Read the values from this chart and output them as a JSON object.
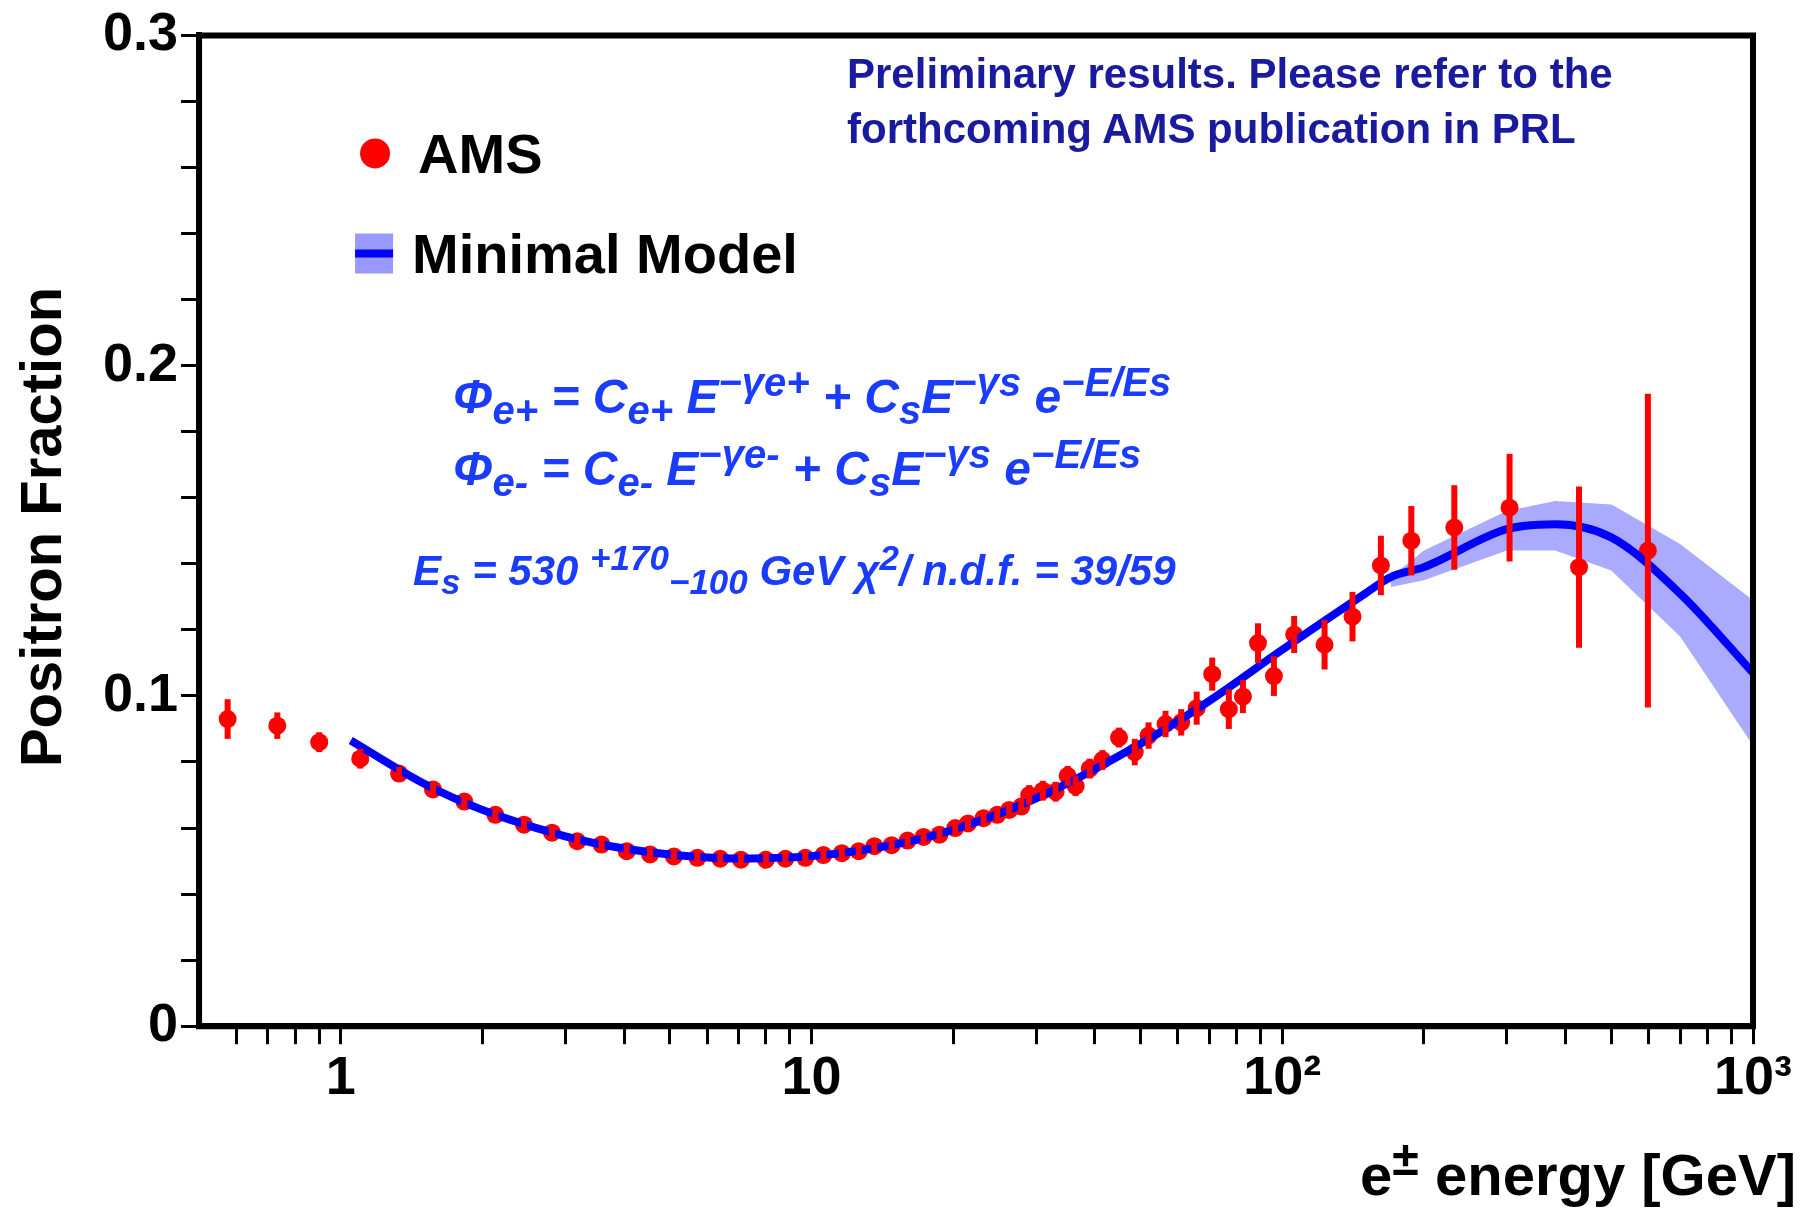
{
  "chart_data": {
    "type": "scatter",
    "xlabel": "e$^{±}$ energy [GeV]",
    "ylabel": "Positron Fraction",
    "annotations": [
      "Preliminary results. Please refer to the",
      "forthcoming AMS publication in PRL",
      "Φ$_{e+}$ = C$_{e+}$ E$^{−γe+}$ + C$_{s}$E$^{−γs}$ e$^{−E/Es}$",
      "Φ$_{e-}$ = C$_{e-}$ E$^{−γe-}$ + C$_{s}$E$^{−γs}$ e$^{−E/Es}$",
      "E$_{s}$ = 530 $^{+170}$$_{−100}$ GeV   χ$^{2}$/ n.d.f. = 39/59"
    ],
    "log": "x",
    "xlim": [
      0.5,
      1000
    ],
    "ylim": [
      0,
      0.3
    ],
    "xticks": [
      {
        "value": 0.6,
        "label": null
      },
      {
        "value": 0.7,
        "label": null
      },
      {
        "value": 0.8,
        "label": null
      },
      {
        "value": 0.9,
        "label": null
      },
      1,
      {
        "value": 2,
        "label": null
      },
      {
        "value": 3,
        "label": null
      },
      {
        "value": 4,
        "label": null
      },
      {
        "value": 5,
        "label": null
      },
      {
        "value": 6,
        "label": null
      },
      {
        "value": 7,
        "label": null
      },
      {
        "value": 8,
        "label": null
      },
      {
        "value": 9,
        "label": null
      },
      10,
      {
        "value": 20,
        "label": null
      },
      {
        "value": 30,
        "label": null
      },
      {
        "value": 40,
        "label": null
      },
      {
        "value": 50,
        "label": null
      },
      {
        "value": 60,
        "label": null
      },
      {
        "value": 70,
        "label": null
      },
      {
        "value": 80,
        "label": null
      },
      {
        "value": 90,
        "label": null
      },
      {
        "value": 100,
        "label": "10²"
      },
      {
        "value": 200,
        "label": null
      },
      {
        "value": 300,
        "label": null
      },
      {
        "value": 400,
        "label": null
      },
      {
        "value": 500,
        "label": null
      },
      {
        "value": 600,
        "label": null
      },
      {
        "value": 700,
        "label": null
      },
      {
        "value": 800,
        "label": null
      },
      {
        "value": 900,
        "label": null
      },
      {
        "value": 1000,
        "label": "10³"
      }
    ],
    "yticks": [
      0,
      {
        "value": 0.02,
        "label": null
      },
      {
        "value": 0.04,
        "label": null
      },
      {
        "value": 0.06,
        "label": null
      },
      {
        "value": 0.08,
        "label": null
      },
      0.1,
      {
        "value": 0.12,
        "label": null
      },
      {
        "value": 0.14,
        "label": null
      },
      {
        "value": 0.16,
        "label": null
      },
      {
        "value": 0.18,
        "label": null
      },
      0.2,
      {
        "value": 0.22,
        "label": null
      },
      {
        "value": 0.24,
        "label": null
      },
      {
        "value": 0.26,
        "label": null
      },
      {
        "value": 0.28,
        "label": null
      },
      0.3
    ],
    "grid": false,
    "legend": "top left",
    "series": [
      {
        "name": "AMS",
        "marker": "circle",
        "color": "#ff0000",
        "x": [
          0.575,
          0.733,
          0.9,
          1.1,
          1.33,
          1.57,
          1.83,
          2.13,
          2.45,
          2.81,
          3.18,
          3.58,
          4.05,
          4.54,
          5.1,
          5.72,
          6.4,
          7.08,
          8.0,
          8.8,
          9.7,
          10.6,
          11.6,
          12.6,
          13.6,
          14.8,
          16.0,
          17.3,
          18.7,
          20.2,
          21.5,
          23.2,
          24.8,
          26.3,
          27.9,
          29,
          31,
          33,
          35,
          36.4,
          39,
          41.5,
          45,
          48.6,
          52,
          56.5,
          61,
          65.8,
          71,
          77,
          82.5,
          88.8,
          96,
          106,
          123,
          141,
          162,
          188,
          232,
          304,
          427,
          598
        ],
        "values": [
          0.093,
          0.091,
          0.086,
          0.081,
          0.0765,
          0.0717,
          0.068,
          0.064,
          0.061,
          0.0586,
          0.056,
          0.055,
          0.053,
          0.052,
          0.0514,
          0.051,
          0.0507,
          0.0504,
          0.0504,
          0.0507,
          0.051,
          0.0518,
          0.0524,
          0.053,
          0.0545,
          0.0548,
          0.0562,
          0.0573,
          0.058,
          0.06,
          0.0614,
          0.063,
          0.064,
          0.0655,
          0.0665,
          0.07,
          0.0713,
          0.071,
          0.0758,
          0.0727,
          0.078,
          0.0806,
          0.0874,
          0.083,
          0.088,
          0.0915,
          0.092,
          0.0963,
          0.1066,
          0.096,
          0.0998,
          0.116,
          0.106,
          0.1186,
          0.1155,
          0.124,
          0.1395,
          0.147,
          0.151,
          0.157,
          0.139,
          0.144
        ],
        "errors": [
          0.006,
          0.004,
          0.003,
          0.003,
          0.002,
          0.002,
          0.002,
          0.002,
          0.002,
          0.002,
          0.002,
          0.002,
          0.002,
          0.002,
          0.002,
          0.002,
          0.002,
          0.002,
          0.002,
          0.002,
          0.002,
          0.002,
          0.002,
          0.002,
          0.002,
          0.002,
          0.002,
          0.002,
          0.002,
          0.002,
          0.002,
          0.002,
          0.002,
          0.002,
          0.002,
          0.003,
          0.003,
          0.003,
          0.003,
          0.003,
          0.003,
          0.003,
          0.003,
          0.004,
          0.004,
          0.004,
          0.004,
          0.005,
          0.005,
          0.006,
          0.005,
          0.006,
          0.006,
          0.0056,
          0.0075,
          0.0075,
          0.009,
          0.0105,
          0.0128,
          0.0163,
          0.0244,
          0.0475
        ]
      },
      {
        "name": "Minimal Model",
        "type": "line",
        "color": "#0000ff",
        "x": [
          1.05,
          1.5,
          2,
          3,
          4,
          5,
          7,
          10,
          15,
          20,
          30,
          50,
          70,
          100,
          150,
          170,
          200,
          300,
          380,
          500,
          700,
          1000
        ],
        "values": [
          0.0865,
          0.0735,
          0.0655,
          0.0575,
          0.0538,
          0.052,
          0.0508,
          0.0515,
          0.055,
          0.0595,
          0.069,
          0.0855,
          0.0985,
          0.114,
          0.131,
          0.136,
          0.139,
          0.1505,
          0.152,
          0.148,
          0.131,
          0.107
        ],
        "lower": [
          null,
          null,
          null,
          null,
          null,
          null,
          null,
          null,
          null,
          null,
          null,
          null,
          null,
          null,
          null,
          0.133,
          0.135,
          0.144,
          0.144,
          0.138,
          0.118,
          0.085
        ],
        "upper": [
          null,
          null,
          null,
          null,
          null,
          null,
          null,
          null,
          null,
          null,
          null,
          null,
          null,
          null,
          null,
          0.136,
          0.144,
          0.156,
          0.159,
          0.158,
          0.146,
          0.129
        ]
      }
    ]
  }
}
